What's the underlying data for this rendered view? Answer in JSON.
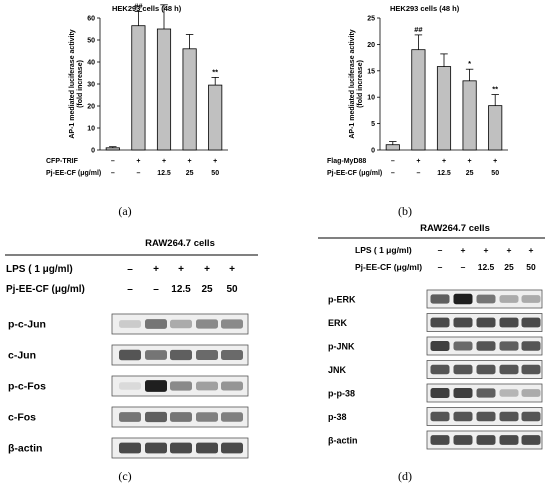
{
  "panel_labels": [
    "(a)",
    "(b)",
    "(c)",
    "(d)"
  ],
  "chart_data": [
    {
      "type": "bar",
      "panel": "(a)",
      "title": "HEK293 cells (48 h)",
      "ylabel_line1": "AP-1 mediated luciferase activity",
      "ylabel_line2": "(fold increase)",
      "ylim": [
        0,
        60
      ],
      "yticks": [
        0,
        10,
        20,
        30,
        40,
        50,
        60
      ],
      "treatment_rows": [
        {
          "label": "CFP-TRIF",
          "values": [
            "–",
            "+",
            "+",
            "+",
            "+"
          ]
        },
        {
          "label": "Pj-EE-CF (μg/ml)",
          "values": [
            "–",
            "–",
            "12.5",
            "25",
            "50"
          ]
        }
      ],
      "values": [
        1,
        56.5,
        55,
        46,
        29.5
      ],
      "errors": [
        0.5,
        6.5,
        11,
        6.5,
        3.5
      ],
      "significance": [
        "",
        "##",
        "",
        "",
        "**"
      ]
    },
    {
      "type": "bar",
      "panel": "(b)",
      "title": "HEK293 cells (48 h)",
      "ylabel_line1": "AP-1 mediated luciferase activity",
      "ylabel_line2": "(fold increase)",
      "ylim": [
        0,
        25
      ],
      "yticks": [
        0,
        5,
        10,
        15,
        20,
        25
      ],
      "treatment_rows": [
        {
          "label": "Flag-MyD88",
          "values": [
            "–",
            "+",
            "+",
            "+",
            "+"
          ]
        },
        {
          "label": "Pj-EE-CF (μg/ml)",
          "values": [
            "–",
            "–",
            "12.5",
            "25",
            "50"
          ]
        }
      ],
      "values": [
        1,
        19,
        15.8,
        13.1,
        8.4
      ],
      "errors": [
        0.6,
        2.8,
        2.4,
        2.2,
        2.1
      ],
      "significance": [
        "",
        "##",
        "",
        "*",
        "**"
      ]
    }
  ],
  "blot_c": {
    "title": "RAW264.7 cells",
    "rows": [
      {
        "label": "LPS ( 1 μg/ml)",
        "values": [
          "–",
          "+",
          "+",
          "+",
          "+"
        ]
      },
      {
        "label": "Pj-EE-CF (μg/ml)",
        "values": [
          "–",
          "–",
          "12.5",
          "25",
          "50"
        ]
      }
    ],
    "bands": [
      {
        "label": "p-c-Jun",
        "intensity": [
          0.15,
          0.55,
          0.3,
          0.45,
          0.45
        ]
      },
      {
        "label": "c-Jun",
        "intensity": [
          0.7,
          0.55,
          0.65,
          0.6,
          0.6
        ]
      },
      {
        "label": "p-c-Fos",
        "intensity": [
          0.08,
          0.95,
          0.45,
          0.35,
          0.4
        ]
      },
      {
        "label": "c-Fos",
        "intensity": [
          0.55,
          0.65,
          0.55,
          0.5,
          0.5
        ]
      },
      {
        "label": "β-actin",
        "intensity": [
          0.75,
          0.75,
          0.75,
          0.75,
          0.75
        ]
      }
    ]
  },
  "blot_d": {
    "title": "RAW264.7 cells",
    "rows": [
      {
        "label": "LPS ( 1 μg/ml)",
        "values": [
          "–",
          "+",
          "+",
          "+",
          "+"
        ]
      },
      {
        "label": "Pj-EE-CF (μg/ml)",
        "values": [
          "–",
          "–",
          "12.5",
          "25",
          "50"
        ]
      }
    ],
    "bands": [
      {
        "label": "p-ERK",
        "intensity": [
          0.65,
          0.95,
          0.55,
          0.3,
          0.3
        ]
      },
      {
        "label": "ERK",
        "intensity": [
          0.75,
          0.75,
          0.75,
          0.75,
          0.75
        ]
      },
      {
        "label": "p-JNK",
        "intensity": [
          0.8,
          0.6,
          0.7,
          0.65,
          0.7
        ]
      },
      {
        "label": "JNK",
        "intensity": [
          0.7,
          0.7,
          0.7,
          0.7,
          0.7
        ]
      },
      {
        "label": "p-p-38",
        "intensity": [
          0.8,
          0.8,
          0.65,
          0.25,
          0.3
        ]
      },
      {
        "label": "p-38",
        "intensity": [
          0.7,
          0.7,
          0.7,
          0.7,
          0.7
        ]
      },
      {
        "label": "β-actin",
        "intensity": [
          0.75,
          0.75,
          0.75,
          0.75,
          0.75
        ]
      }
    ]
  }
}
